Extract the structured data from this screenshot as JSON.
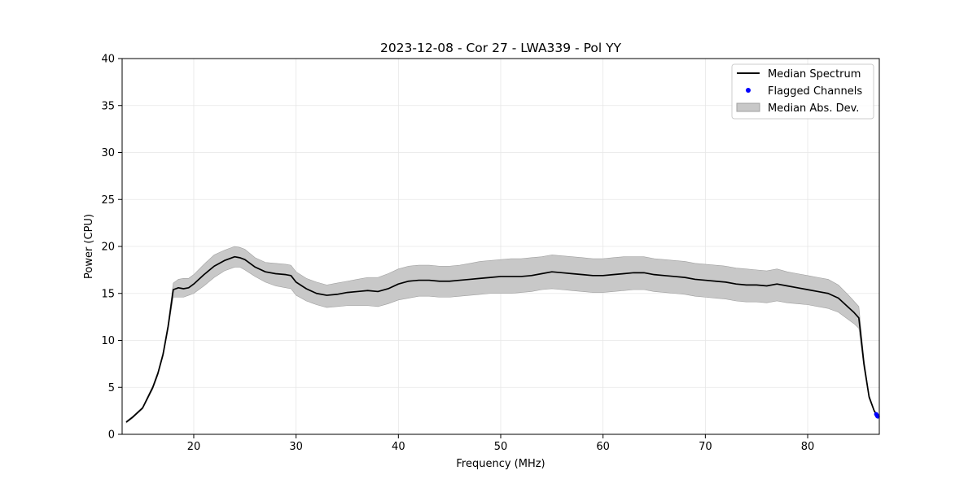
{
  "chart_data": {
    "type": "line",
    "title": "2023-12-08 - Cor 27 - LWA339 - Pol YY",
    "xlabel": "Frequency (MHz)",
    "ylabel": "Power (CPU)",
    "xlim": [
      13,
      87
    ],
    "ylim": [
      0,
      40
    ],
    "xticks": [
      20,
      30,
      40,
      50,
      60,
      70,
      80
    ],
    "yticks": [
      0,
      5,
      10,
      15,
      20,
      25,
      30,
      35,
      40
    ],
    "grid": true,
    "legend_position": "top-right",
    "colors": {
      "median": "#000000",
      "flagged": "#0000ff",
      "mad_fill": "#c8c8c8",
      "mad_edge": "#a0a0a0"
    },
    "series": [
      {
        "name": "Median Spectrum",
        "kind": "line",
        "x": [
          13.4,
          14.0,
          15.0,
          16.0,
          16.5,
          17.0,
          17.5,
          18.0,
          18.5,
          19.0,
          19.5,
          20.0,
          21.0,
          22.0,
          23.0,
          24.0,
          24.5,
          25.0,
          26.0,
          27.0,
          28.0,
          29.0,
          29.5,
          30.0,
          31.0,
          32.0,
          33.0,
          34.0,
          35.0,
          36.0,
          37.0,
          38.0,
          39.0,
          40.0,
          41.0,
          42.0,
          43.0,
          44.0,
          45.0,
          46.0,
          47.0,
          48.0,
          49.0,
          50.0,
          51.0,
          52.0,
          53.0,
          54.0,
          55.0,
          56.0,
          57.0,
          58.0,
          59.0,
          60.0,
          61.0,
          62.0,
          63.0,
          64.0,
          65.0,
          66.0,
          67.0,
          68.0,
          69.0,
          70.0,
          71.0,
          72.0,
          73.0,
          74.0,
          75.0,
          76.0,
          77.0,
          78.0,
          79.0,
          80.0,
          81.0,
          82.0,
          83.0,
          84.0,
          84.5,
          85.0,
          85.5,
          86.0,
          86.5,
          86.8
        ],
        "y": [
          1.3,
          1.8,
          2.8,
          5.0,
          6.5,
          8.5,
          11.5,
          15.4,
          15.6,
          15.5,
          15.6,
          16.0,
          17.0,
          17.9,
          18.5,
          18.9,
          18.8,
          18.6,
          17.8,
          17.3,
          17.1,
          17.0,
          16.9,
          16.2,
          15.5,
          15.0,
          14.8,
          14.9,
          15.1,
          15.2,
          15.3,
          15.2,
          15.5,
          16.0,
          16.3,
          16.4,
          16.4,
          16.3,
          16.3,
          16.4,
          16.5,
          16.6,
          16.7,
          16.8,
          16.8,
          16.8,
          16.9,
          17.1,
          17.3,
          17.2,
          17.1,
          17.0,
          16.9,
          16.9,
          17.0,
          17.1,
          17.2,
          17.2,
          17.0,
          16.9,
          16.8,
          16.7,
          16.5,
          16.4,
          16.3,
          16.2,
          16.0,
          15.9,
          15.9,
          15.8,
          16.0,
          15.8,
          15.6,
          15.4,
          15.2,
          15.0,
          14.5,
          13.5,
          13.0,
          12.4,
          7.5,
          4.0,
          2.5,
          2.0
        ]
      },
      {
        "name": "Median Abs. Dev.",
        "kind": "band",
        "x": [
          13.4,
          14.0,
          15.0,
          16.0,
          16.5,
          17.0,
          17.5,
          18.0,
          18.5,
          19.0,
          19.5,
          20.0,
          21.0,
          22.0,
          23.0,
          24.0,
          24.5,
          25.0,
          26.0,
          27.0,
          28.0,
          29.0,
          29.5,
          30.0,
          31.0,
          32.0,
          33.0,
          34.0,
          35.0,
          36.0,
          37.0,
          38.0,
          39.0,
          40.0,
          41.0,
          42.0,
          43.0,
          44.0,
          45.0,
          46.0,
          47.0,
          48.0,
          49.0,
          50.0,
          51.0,
          52.0,
          53.0,
          54.0,
          55.0,
          56.0,
          57.0,
          58.0,
          59.0,
          60.0,
          61.0,
          62.0,
          63.0,
          64.0,
          65.0,
          66.0,
          67.0,
          68.0,
          69.0,
          70.0,
          71.0,
          72.0,
          73.0,
          74.0,
          75.0,
          76.0,
          77.0,
          78.0,
          79.0,
          80.0,
          81.0,
          82.0,
          83.0,
          84.0,
          84.5,
          85.0,
          85.5,
          86.0,
          86.5,
          86.8
        ],
        "lower": [
          1.2,
          1.7,
          2.7,
          4.8,
          6.3,
          8.3,
          11.2,
          14.6,
          14.6,
          14.6,
          14.8,
          15.0,
          15.8,
          16.7,
          17.4,
          17.8,
          17.8,
          17.5,
          16.8,
          16.2,
          15.8,
          15.6,
          15.5,
          14.8,
          14.2,
          13.8,
          13.5,
          13.6,
          13.7,
          13.7,
          13.7,
          13.6,
          13.9,
          14.3,
          14.5,
          14.7,
          14.7,
          14.6,
          14.6,
          14.7,
          14.8,
          14.9,
          15.0,
          15.0,
          15.0,
          15.1,
          15.2,
          15.4,
          15.5,
          15.4,
          15.3,
          15.2,
          15.1,
          15.1,
          15.2,
          15.3,
          15.4,
          15.4,
          15.2,
          15.1,
          15.0,
          14.9,
          14.7,
          14.6,
          14.5,
          14.4,
          14.2,
          14.1,
          14.1,
          14.0,
          14.2,
          14.0,
          13.9,
          13.8,
          13.6,
          13.4,
          13.0,
          12.2,
          11.8,
          11.3,
          7.0,
          3.8,
          2.4,
          1.9
        ],
        "upper": [
          1.4,
          1.9,
          2.9,
          5.2,
          6.7,
          8.8,
          11.9,
          16.1,
          16.5,
          16.6,
          16.6,
          17.0,
          18.1,
          19.1,
          19.6,
          20.0,
          19.9,
          19.7,
          18.8,
          18.3,
          18.2,
          18.1,
          18.0,
          17.3,
          16.6,
          16.2,
          15.9,
          16.1,
          16.3,
          16.5,
          16.7,
          16.7,
          17.1,
          17.6,
          17.9,
          18.0,
          18.0,
          17.9,
          17.9,
          18.0,
          18.2,
          18.4,
          18.5,
          18.6,
          18.7,
          18.7,
          18.8,
          18.9,
          19.1,
          19.0,
          18.9,
          18.8,
          18.7,
          18.7,
          18.8,
          18.9,
          18.9,
          18.9,
          18.7,
          18.6,
          18.5,
          18.4,
          18.2,
          18.1,
          18.0,
          17.9,
          17.7,
          17.6,
          17.5,
          17.4,
          17.6,
          17.3,
          17.1,
          16.9,
          16.7,
          16.5,
          15.9,
          14.8,
          14.2,
          13.6,
          8.0,
          4.2,
          2.6,
          2.1
        ]
      },
      {
        "name": "Flagged Channels",
        "kind": "scatter",
        "x": [
          86.7,
          86.75,
          86.8,
          86.85
        ],
        "y": [
          2.15,
          2.05,
          1.95,
          1.9
        ]
      }
    ]
  }
}
